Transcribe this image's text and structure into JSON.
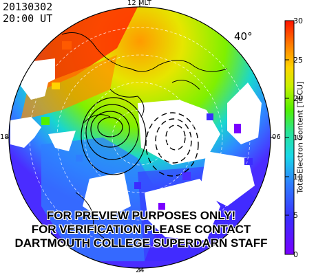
{
  "header": {
    "date": "20130302",
    "time": "20:00 UT"
  },
  "map": {
    "mlt_top": "12 MLT",
    "mlt_left": "18",
    "mlt_right": "06",
    "mlt_bottom": "24",
    "latitude_label": "40°"
  },
  "colorbar": {
    "label": "Total Electron Content [TECU]",
    "min": 0,
    "max": 30,
    "ticks": [
      "30",
      "25",
      "20",
      "15",
      "10",
      "5",
      "0"
    ]
  },
  "watermark": {
    "line1": "FOR PREVIEW PURPOSES ONLY!",
    "line2": "FOR VERIFICATION PLEASE CONTACT",
    "line3": "DARTMOUTH COLLEGE SUPERDARN STAFF"
  }
}
